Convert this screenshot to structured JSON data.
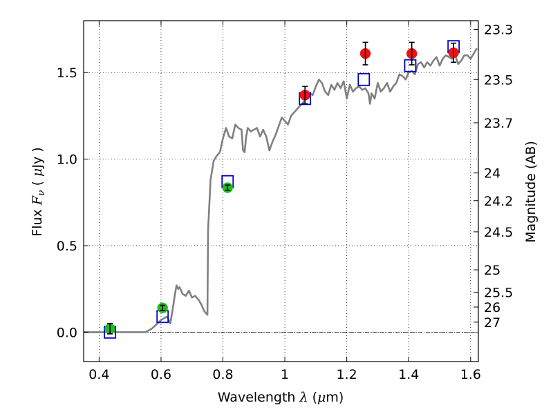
{
  "chart_data": {
    "type": "scatter",
    "title": "",
    "xlabel": "Wavelength  λ (μm)",
    "ylabel": "Flux  F_ν  ( μJy )",
    "ylabel_right": "Magnitude (AB)",
    "xlim": [
      0.35,
      1.625
    ],
    "ylim": [
      -0.17,
      1.8
    ],
    "grid": true,
    "x_ticks": [
      0.4,
      0.6,
      0.8,
      1.0,
      1.2,
      1.4,
      1.6
    ],
    "x_tick_labels": [
      "0.4",
      "0.6",
      "0.8",
      "1",
      "1.2",
      "1.4",
      "1.6"
    ],
    "y_ticks": [
      0.0,
      0.5,
      1.0,
      1.5
    ],
    "y_tick_labels": [
      "0.0",
      "0.5",
      "1.0",
      "1.5"
    ],
    "mag_ticks": [
      {
        "label": "23.3",
        "flux": 1.75
      },
      {
        "label": "23.5",
        "flux": 1.46
      },
      {
        "label": "23.7",
        "flux": 1.21
      },
      {
        "label": "24",
        "flux": 0.92
      },
      {
        "label": "24.2",
        "flux": 0.76
      },
      {
        "label": "24.5",
        "flux": 0.58
      },
      {
        "label": "25",
        "flux": 0.36
      },
      {
        "label": "25.5",
        "flux": 0.23
      },
      {
        "label": "26",
        "flux": 0.145
      },
      {
        "label": "27",
        "flux": 0.058
      }
    ],
    "colors": {
      "sed": "#808080",
      "model_box": "#0000cc",
      "optical": "#22bb22",
      "nir": "#ee1111",
      "errorbar": "#000000",
      "zero_line": "#000000"
    },
    "series": [
      {
        "kind": "line",
        "points": [
          [
            0.35,
            0.0
          ],
          [
            0.55,
            0.0
          ],
          [
            0.57,
            0.02
          ],
          [
            0.6,
            0.07
          ],
          [
            0.62,
            0.09
          ],
          [
            0.63,
            0.05
          ],
          [
            0.64,
            0.16
          ],
          [
            0.645,
            0.22
          ],
          [
            0.65,
            0.27
          ],
          [
            0.655,
            0.25
          ],
          [
            0.66,
            0.26
          ],
          [
            0.67,
            0.22
          ],
          [
            0.68,
            0.21
          ],
          [
            0.69,
            0.24
          ],
          [
            0.7,
            0.2
          ],
          [
            0.71,
            0.21
          ],
          [
            0.72,
            0.19
          ],
          [
            0.73,
            0.16
          ],
          [
            0.74,
            0.12
          ],
          [
            0.75,
            0.1
          ],
          [
            0.752,
            0.59
          ],
          [
            0.76,
            0.88
          ],
          [
            0.77,
            0.99
          ],
          [
            0.78,
            1.02
          ],
          [
            0.79,
            1.04
          ],
          [
            0.8,
            1.12
          ],
          [
            0.81,
            1.18
          ],
          [
            0.82,
            1.13
          ],
          [
            0.83,
            1.12
          ],
          [
            0.84,
            1.2
          ],
          [
            0.85,
            1.18
          ],
          [
            0.86,
            1.17
          ],
          [
            0.865,
            1.05
          ],
          [
            0.87,
            1.04
          ],
          [
            0.875,
            1.13
          ],
          [
            0.88,
            1.18
          ],
          [
            0.89,
            1.16
          ],
          [
            0.9,
            1.17
          ],
          [
            0.91,
            1.18
          ],
          [
            0.92,
            1.13
          ],
          [
            0.93,
            1.17
          ],
          [
            0.94,
            1.13
          ],
          [
            0.95,
            1.05
          ],
          [
            0.96,
            1.1
          ],
          [
            0.97,
            1.14
          ],
          [
            0.98,
            1.19
          ],
          [
            0.99,
            1.24
          ],
          [
            1.0,
            1.22
          ],
          [
            1.01,
            1.2
          ],
          [
            1.02,
            1.25
          ],
          [
            1.03,
            1.27
          ],
          [
            1.04,
            1.29
          ],
          [
            1.05,
            1.31
          ],
          [
            1.06,
            1.33
          ],
          [
            1.07,
            1.36
          ],
          [
            1.08,
            1.38
          ],
          [
            1.09,
            1.37
          ],
          [
            1.1,
            1.42
          ],
          [
            1.11,
            1.46
          ],
          [
            1.12,
            1.44
          ],
          [
            1.13,
            1.39
          ],
          [
            1.14,
            1.37
          ],
          [
            1.15,
            1.43
          ],
          [
            1.16,
            1.4
          ],
          [
            1.17,
            1.44
          ],
          [
            1.18,
            1.41
          ],
          [
            1.19,
            1.45
          ],
          [
            1.2,
            1.35
          ],
          [
            1.21,
            1.43
          ],
          [
            1.22,
            1.39
          ],
          [
            1.23,
            1.41
          ],
          [
            1.24,
            1.42
          ],
          [
            1.25,
            1.4
          ],
          [
            1.26,
            1.41
          ],
          [
            1.27,
            1.38
          ],
          [
            1.275,
            1.32
          ],
          [
            1.28,
            1.38
          ],
          [
            1.29,
            1.35
          ],
          [
            1.3,
            1.44
          ],
          [
            1.31,
            1.39
          ],
          [
            1.32,
            1.41
          ],
          [
            1.33,
            1.44
          ],
          [
            1.34,
            1.39
          ],
          [
            1.35,
            1.42
          ],
          [
            1.36,
            1.44
          ],
          [
            1.37,
            1.49
          ],
          [
            1.38,
            1.48
          ],
          [
            1.39,
            1.46
          ],
          [
            1.4,
            1.5
          ],
          [
            1.41,
            1.51
          ],
          [
            1.42,
            1.49
          ],
          [
            1.43,
            1.55
          ],
          [
            1.44,
            1.56
          ],
          [
            1.45,
            1.53
          ],
          [
            1.46,
            1.56
          ],
          [
            1.47,
            1.54
          ],
          [
            1.48,
            1.57
          ],
          [
            1.49,
            1.59
          ],
          [
            1.5,
            1.54
          ],
          [
            1.51,
            1.58
          ],
          [
            1.52,
            1.6
          ],
          [
            1.53,
            1.59
          ],
          [
            1.54,
            1.58
          ],
          [
            1.55,
            1.6
          ],
          [
            1.56,
            1.55
          ],
          [
            1.57,
            1.57
          ],
          [
            1.58,
            1.6
          ],
          [
            1.59,
            1.6
          ],
          [
            1.6,
            1.58
          ],
          [
            1.61,
            1.61
          ],
          [
            1.62,
            1.64
          ]
        ]
      },
      {
        "kind": "box",
        "points": [
          [
            0.435,
            0.0
          ],
          [
            0.605,
            0.09
          ],
          [
            0.815,
            0.87
          ],
          [
            1.065,
            1.35
          ],
          [
            1.255,
            1.46
          ],
          [
            1.405,
            1.54
          ],
          [
            1.545,
            1.65
          ]
        ]
      },
      {
        "kind": "marker",
        "group": "optical",
        "points": [
          {
            "x": 0.435,
            "y": 0.02,
            "err": 0.03
          },
          {
            "x": 0.605,
            "y": 0.14,
            "err": 0.015
          },
          {
            "x": 0.815,
            "y": 0.835,
            "err": 0.015
          }
        ]
      },
      {
        "kind": "marker",
        "group": "nir",
        "points": [
          {
            "x": 1.065,
            "y": 1.37,
            "err": 0.05
          },
          {
            "x": 1.26,
            "y": 1.61,
            "err": 0.065
          },
          {
            "x": 1.41,
            "y": 1.61,
            "err": 0.065
          },
          {
            "x": 1.545,
            "y": 1.615,
            "err": 0.055
          }
        ]
      }
    ]
  }
}
